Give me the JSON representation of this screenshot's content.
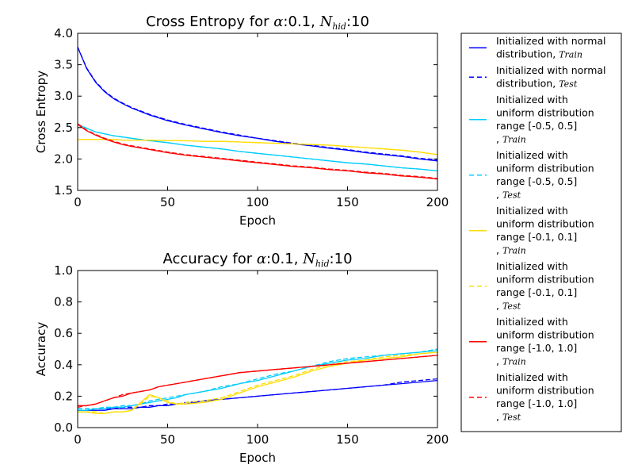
{
  "chart_data": [
    {
      "type": "line",
      "title_prefix": "Cross Entropy for ",
      "title_alpha": "α",
      "title_mid": ":0.1, ",
      "title_N": "N",
      "title_N_sub": "hid",
      "title_suffix": ":10",
      "xlabel": "Epoch",
      "ylabel": "Cross Entropy",
      "xlim": [
        0,
        200
      ],
      "ylim": [
        1.5,
        4.0
      ],
      "xticks": [
        0,
        50,
        100,
        150,
        200
      ],
      "xtick_labels": [
        "0",
        "50",
        "100",
        "150",
        "200"
      ],
      "yticks": [
        1.5,
        2.0,
        2.5,
        3.0,
        3.5,
        4.0
      ],
      "ytick_labels": [
        "1.5",
        "2.0",
        "2.5",
        "3.0",
        "3.5",
        "4.0"
      ],
      "x": [
        0,
        5,
        10,
        15,
        20,
        25,
        30,
        40,
        50,
        60,
        70,
        80,
        90,
        100,
        110,
        120,
        130,
        140,
        150,
        160,
        170,
        180,
        190,
        200
      ],
      "series": [
        {
          "legend_index": 0,
          "color": "#0000ff",
          "dash": "solid",
          "values": [
            3.78,
            3.44,
            3.22,
            3.07,
            2.96,
            2.88,
            2.81,
            2.7,
            2.61,
            2.54,
            2.48,
            2.42,
            2.37,
            2.33,
            2.28,
            2.24,
            2.21,
            2.17,
            2.14,
            2.1,
            2.07,
            2.04,
            2.0,
            1.97
          ]
        },
        {
          "legend_index": 1,
          "color": "#0000ff",
          "dash": "dashed",
          "values": [
            3.78,
            3.45,
            3.23,
            3.08,
            2.97,
            2.89,
            2.82,
            2.71,
            2.62,
            2.55,
            2.49,
            2.43,
            2.38,
            2.33,
            2.29,
            2.25,
            2.22,
            2.18,
            2.15,
            2.11,
            2.08,
            2.05,
            2.01,
            1.99
          ]
        },
        {
          "legend_index": 2,
          "color": "#00ccff",
          "dash": "solid",
          "values": [
            2.55,
            2.49,
            2.43,
            2.4,
            2.37,
            2.35,
            2.33,
            2.29,
            2.26,
            2.22,
            2.19,
            2.16,
            2.12,
            2.09,
            2.06,
            2.03,
            2.0,
            1.97,
            1.94,
            1.92,
            1.89,
            1.86,
            1.84,
            1.81
          ]
        },
        {
          "legend_index": 3,
          "color": "#00ccff",
          "dash": "dashed",
          "values": [
            2.55,
            2.49,
            2.43,
            2.4,
            2.37,
            2.35,
            2.33,
            2.29,
            2.26,
            2.22,
            2.19,
            2.16,
            2.12,
            2.09,
            2.06,
            2.03,
            2.0,
            1.97,
            1.94,
            1.92,
            1.89,
            1.86,
            1.84,
            1.81
          ]
        },
        {
          "legend_index": 4,
          "color": "#ffdd00",
          "dash": "solid",
          "values": [
            2.31,
            2.31,
            2.31,
            2.31,
            2.31,
            2.3,
            2.3,
            2.3,
            2.29,
            2.29,
            2.28,
            2.28,
            2.27,
            2.26,
            2.25,
            2.24,
            2.23,
            2.22,
            2.2,
            2.18,
            2.16,
            2.14,
            2.11,
            2.07
          ]
        },
        {
          "legend_index": 5,
          "color": "#ffdd00",
          "dash": "dashed",
          "values": [
            2.31,
            2.31,
            2.31,
            2.31,
            2.31,
            2.3,
            2.3,
            2.3,
            2.29,
            2.29,
            2.28,
            2.28,
            2.27,
            2.26,
            2.25,
            2.24,
            2.23,
            2.22,
            2.2,
            2.18,
            2.16,
            2.14,
            2.11,
            2.07
          ]
        },
        {
          "legend_index": 6,
          "color": "#ff0000",
          "dash": "solid",
          "values": [
            2.55,
            2.45,
            2.38,
            2.32,
            2.27,
            2.23,
            2.2,
            2.15,
            2.1,
            2.06,
            2.03,
            2.0,
            1.97,
            1.94,
            1.91,
            1.88,
            1.86,
            1.83,
            1.81,
            1.78,
            1.76,
            1.73,
            1.71,
            1.68
          ]
        },
        {
          "legend_index": 7,
          "color": "#ff0000",
          "dash": "dashed",
          "values": [
            2.56,
            2.46,
            2.39,
            2.33,
            2.28,
            2.24,
            2.21,
            2.16,
            2.11,
            2.07,
            2.04,
            2.01,
            1.98,
            1.95,
            1.92,
            1.89,
            1.87,
            1.84,
            1.82,
            1.79,
            1.77,
            1.74,
            1.72,
            1.69
          ]
        }
      ]
    },
    {
      "type": "line",
      "title_prefix": "Accuracy for ",
      "title_alpha": "α",
      "title_mid": ":0.1, ",
      "title_N": "N",
      "title_N_sub": "hid",
      "title_suffix": ":10",
      "xlabel": "Epoch",
      "ylabel": "Accuracy",
      "xlim": [
        0,
        200
      ],
      "ylim": [
        0.0,
        1.0
      ],
      "xticks": [
        0,
        50,
        100,
        150,
        200
      ],
      "xtick_labels": [
        "0",
        "50",
        "100",
        "150",
        "200"
      ],
      "yticks": [
        0.0,
        0.2,
        0.4,
        0.6,
        0.8,
        1.0
      ],
      "ytick_labels": [
        "0.0",
        "0.2",
        "0.4",
        "0.6",
        "0.8",
        "1.0"
      ],
      "x": [
        0,
        5,
        10,
        15,
        20,
        25,
        30,
        35,
        40,
        45,
        50,
        55,
        60,
        70,
        80,
        90,
        100,
        110,
        120,
        130,
        140,
        150,
        160,
        170,
        180,
        190,
        200
      ],
      "series": [
        {
          "legend_index": 0,
          "color": "#0000ff",
          "dash": "solid",
          "values": [
            0.11,
            0.11,
            0.11,
            0.11,
            0.12,
            0.12,
            0.12,
            0.13,
            0.13,
            0.14,
            0.14,
            0.15,
            0.15,
            0.17,
            0.18,
            0.19,
            0.2,
            0.21,
            0.22,
            0.23,
            0.24,
            0.25,
            0.26,
            0.27,
            0.28,
            0.29,
            0.3
          ]
        },
        {
          "legend_index": 1,
          "color": "#0000ff",
          "dash": "dashed",
          "values": [
            0.12,
            0.12,
            0.12,
            0.12,
            0.12,
            0.13,
            0.13,
            0.13,
            0.14,
            0.14,
            0.15,
            0.15,
            0.16,
            0.17,
            0.18,
            0.19,
            0.2,
            0.21,
            0.22,
            0.23,
            0.24,
            0.25,
            0.26,
            0.27,
            0.29,
            0.3,
            0.31
          ]
        },
        {
          "legend_index": 2,
          "color": "#00ccff",
          "dash": "solid",
          "values": [
            0.11,
            0.11,
            0.12,
            0.12,
            0.13,
            0.13,
            0.14,
            0.15,
            0.16,
            0.17,
            0.18,
            0.19,
            0.21,
            0.23,
            0.25,
            0.28,
            0.3,
            0.33,
            0.36,
            0.39,
            0.41,
            0.43,
            0.44,
            0.46,
            0.47,
            0.48,
            0.49
          ]
        },
        {
          "legend_index": 3,
          "color": "#00ccff",
          "dash": "dashed",
          "values": [
            0.12,
            0.12,
            0.12,
            0.13,
            0.13,
            0.14,
            0.14,
            0.15,
            0.17,
            0.18,
            0.19,
            0.2,
            0.21,
            0.23,
            0.26,
            0.28,
            0.31,
            0.34,
            0.36,
            0.39,
            0.42,
            0.44,
            0.45,
            0.46,
            0.47,
            0.48,
            0.5
          ]
        },
        {
          "legend_index": 4,
          "color": "#ffdd00",
          "dash": "solid",
          "values": [
            0.1,
            0.1,
            0.09,
            0.09,
            0.1,
            0.1,
            0.11,
            0.16,
            0.21,
            0.19,
            0.16,
            0.15,
            0.15,
            0.16,
            0.18,
            0.22,
            0.26,
            0.29,
            0.32,
            0.36,
            0.39,
            0.41,
            0.43,
            0.44,
            0.45,
            0.47,
            0.48
          ]
        },
        {
          "legend_index": 5,
          "color": "#ffdd00",
          "dash": "dashed",
          "values": [
            0.1,
            0.1,
            0.1,
            0.09,
            0.1,
            0.1,
            0.11,
            0.15,
            0.2,
            0.19,
            0.17,
            0.15,
            0.16,
            0.17,
            0.19,
            0.23,
            0.27,
            0.3,
            0.33,
            0.37,
            0.4,
            0.42,
            0.43,
            0.45,
            0.46,
            0.47,
            0.48
          ]
        },
        {
          "legend_index": 6,
          "color": "#ff0000",
          "dash": "solid",
          "values": [
            0.14,
            0.14,
            0.15,
            0.17,
            0.19,
            0.2,
            0.22,
            0.23,
            0.24,
            0.26,
            0.27,
            0.28,
            0.29,
            0.31,
            0.33,
            0.35,
            0.36,
            0.37,
            0.38,
            0.39,
            0.4,
            0.41,
            0.42,
            0.43,
            0.44,
            0.45,
            0.46
          ]
        },
        {
          "legend_index": 7,
          "color": "#ff0000",
          "dash": "dashed",
          "values": [
            0.13,
            0.14,
            0.15,
            0.17,
            0.19,
            0.21,
            0.22,
            0.23,
            0.24,
            0.26,
            0.27,
            0.28,
            0.29,
            0.31,
            0.33,
            0.35,
            0.36,
            0.37,
            0.38,
            0.39,
            0.4,
            0.41,
            0.42,
            0.43,
            0.44,
            0.45,
            0.46
          ]
        }
      ]
    }
  ],
  "legend": {
    "placement": "right",
    "entries": [
      {
        "lines": [
          "Initialized with normal",
          "distribution, "
        ],
        "math": "Train",
        "color": "#0000ff",
        "dash": "solid"
      },
      {
        "lines": [
          "Initialized with normal",
          "distribution, "
        ],
        "math": "Test",
        "color": "#0000ff",
        "dash": "dashed"
      },
      {
        "lines": [
          "Initialized with",
          "uniform distribution",
          " range [-0.5, 0.5]",
          ", "
        ],
        "math": "Train",
        "color": "#00ccff",
        "dash": "solid"
      },
      {
        "lines": [
          "Initialized with",
          "uniform distribution",
          " range [-0.5, 0.5]",
          ", "
        ],
        "math": "Test",
        "color": "#00ccff",
        "dash": "dashed"
      },
      {
        "lines": [
          "Initialized with",
          "uniform distribution",
          " range [-0.1, 0.1]",
          ", "
        ],
        "math": "Train",
        "color": "#ffdd00",
        "dash": "solid"
      },
      {
        "lines": [
          "Initialized with",
          "uniform distribution",
          " range [-0.1, 0.1]",
          ", "
        ],
        "math": "Test",
        "color": "#ffdd00",
        "dash": "dashed"
      },
      {
        "lines": [
          "Initialized with",
          "uniform distribution",
          " range [-1.0, 1.0]",
          ", "
        ],
        "math": "Train",
        "color": "#ff0000",
        "dash": "solid"
      },
      {
        "lines": [
          "Initialized with",
          "uniform distribution",
          " range [-1.0, 1.0]",
          ", "
        ],
        "math": "Test",
        "color": "#ff0000",
        "dash": "dashed"
      }
    ]
  }
}
